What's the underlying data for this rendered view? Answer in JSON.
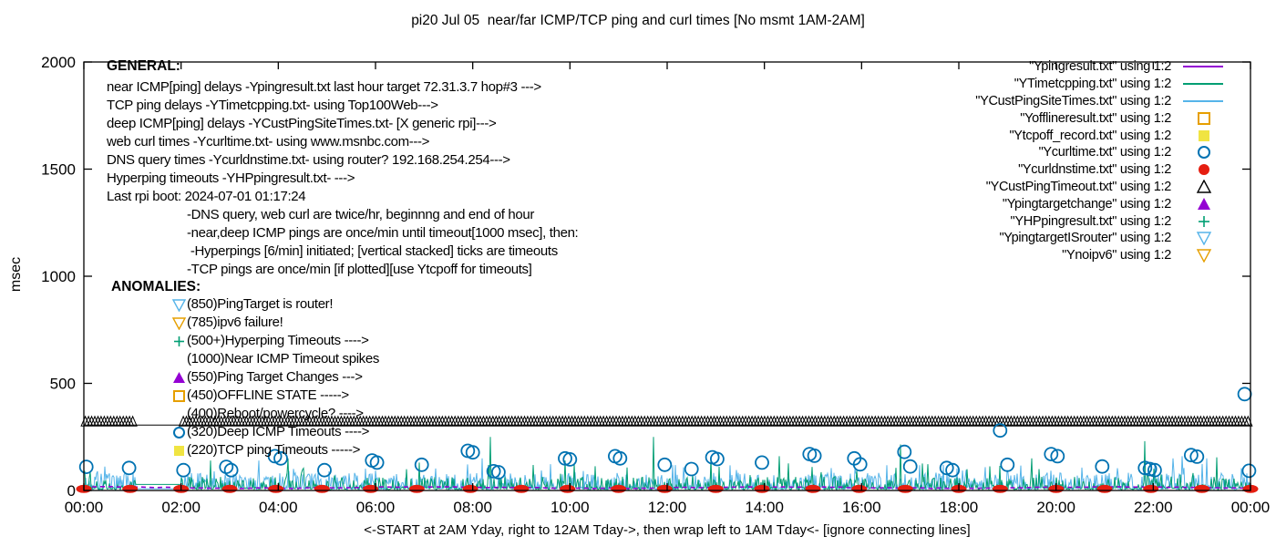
{
  "title": "pi20 Jul 05  near/far ICMP/TCP ping and curl times [No msmt 1AM-2AM]",
  "colors": {
    "purple": "#9400d3",
    "teal": "#009e73",
    "sky": "#56b4e9",
    "orange": "#e69f00",
    "yellow": "#f0e442",
    "blue": "#0072b2",
    "red": "#e51e10",
    "black": "#000000"
  },
  "axes": {
    "ylabel": "msec",
    "y_ticks": [
      0,
      500,
      1000,
      1500,
      2000
    ],
    "x_ticks": [
      "00:00",
      "02:00",
      "04:00",
      "06:00",
      "08:00",
      "10:00",
      "12:00",
      "14:00",
      "16:00",
      "18:00",
      "20:00",
      "22:00",
      "00:00"
    ],
    "x_caption": "<-START at 2AM Yday, right to 12AM Tday->, then wrap left to 1AM Tday<- [ignore connecting lines]"
  },
  "general": {
    "heading": "GENERAL:",
    "lines": [
      "near ICMP[ping] delays -Ypingresult.txt last hour target 72.31.3.7 hop#3 --->",
      "TCP ping delays -YTimetcpping.txt- using Top100Web--->",
      "deep ICMP[ping] delays -YCustPingSiteTimes.txt- [X generic rpi]--->",
      "web curl times -Ycurltime.txt- using www.msnbc.com--->",
      "DNS query times -Ycurldnstime.txt- using router? 192.168.254.254--->",
      "Hyperping timeouts -YHPpingresult.txt- --->",
      "Last rpi boot: 2024-07-01 01:17:24"
    ],
    "indented_lines": [
      "-DNS query, web curl are twice/hr, beginnng and end of hour",
      "-near,deep ICMP pings are once/min until timeout[1000 msec], then:",
      " -Hyperpings [6/min] initiated; [vertical stacked] ticks are timeouts",
      "-TCP pings are once/min [if plotted][use Ytcpoff for timeouts]"
    ]
  },
  "anomalies": {
    "heading": "ANOMALIES:",
    "items": [
      {
        "icon": "open-triangle-down",
        "color": "sky",
        "text": "(850)PingTarget is router!"
      },
      {
        "icon": "open-triangle-down",
        "color": "orange",
        "text": "(785)ipv6 failure!"
      },
      {
        "icon": "plus",
        "color": "teal",
        "text": "(500+)Hyperping Timeouts ---->"
      },
      {
        "icon": "none",
        "color": "black",
        "text": "(1000)Near ICMP Timeout spikes"
      },
      {
        "icon": "filled-triangle-up",
        "color": "purple",
        "text": "(550)Ping Target Changes --->"
      },
      {
        "icon": "open-square",
        "color": "orange",
        "text": "(450)OFFLINE STATE ----->"
      },
      {
        "icon": "none",
        "color": "black",
        "text": "(400)Reboot/powercycle? ---->"
      },
      {
        "icon": "open-circle",
        "color": "blue",
        "text": "(320)Deep ICMP Timeouts ---->"
      },
      {
        "icon": "filled-square",
        "color": "yellow",
        "text": "(220)TCP ping Timeouts ----->"
      }
    ]
  },
  "legend": {
    "items": [
      {
        "label": "\"Ypingresult.txt\" using 1:2",
        "sample": "line",
        "color": "purple"
      },
      {
        "label": "\"YTimetcpping.txt\" using 1:2",
        "sample": "line",
        "color": "teal"
      },
      {
        "label": "\"YCustPingSiteTimes.txt\" using 1:2",
        "sample": "line",
        "color": "sky"
      },
      {
        "label": "\"Yofflineresult.txt\" using 1:2",
        "sample": "open-square",
        "color": "orange"
      },
      {
        "label": "\"Ytcpoff_record.txt\" using 1:2",
        "sample": "filled-square",
        "color": "yellow"
      },
      {
        "label": "\"Ycurltime.txt\" using 1:2",
        "sample": "open-circle",
        "color": "blue"
      },
      {
        "label": "\"Ycurldnstime.txt\" using 1:2",
        "sample": "filled-circle",
        "color": "red"
      },
      {
        "label": "\"YCustPingTimeout.txt\" using 1:2",
        "sample": "open-triangle-up",
        "color": "black"
      },
      {
        "label": "\"Ypingtargetchange\" using 1:2",
        "sample": "filled-triangle-up",
        "color": "purple"
      },
      {
        "label": "\"YHPpingresult.txt\" using 1:2",
        "sample": "plus",
        "color": "teal"
      },
      {
        "label": "\"YpingtargetISrouter\" using 1:2",
        "sample": "open-triangle-down",
        "color": "sky"
      },
      {
        "label": "\"Ynoipv6\" using 1:2",
        "sample": "open-triangle-down",
        "color": "orange"
      }
    ]
  },
  "chart_data": {
    "type": "line",
    "title": "pi20 Jul 05  near/far ICMP/TCP ping and curl times [No msmt 1AM-2AM]",
    "xlabel": "<-START at 2AM Yday, right to 12AM Tday->, then wrap left to 1AM Tday<- [ignore connecting lines]",
    "ylabel": "msec",
    "ylim": [
      0,
      2000
    ],
    "x_hours_range": [
      0,
      24
    ],
    "x_tick_labels": [
      "00:00",
      "02:00",
      "04:00",
      "06:00",
      "08:00",
      "10:00",
      "12:00",
      "14:00",
      "16:00",
      "18:00",
      "20:00",
      "22:00",
      "00:00"
    ],
    "y_ticks": [
      0,
      500,
      1000,
      1500,
      2000
    ],
    "grid": false,
    "legend_position": "top-right",
    "measurement_gap_hours": [
      1.0,
      2.0
    ],
    "noise_seed": 7,
    "series": [
      {
        "name": "Ypingresult.txt",
        "style": "dashed-line",
        "color_key": "purple",
        "level_msec": 12,
        "desc": "near ICMP ping delay, ~10-15 msec flat along baseline"
      },
      {
        "name": "YTimetcpping.txt",
        "style": "noise-line",
        "color_key": "teal",
        "base_range_msec": [
          3,
          65
        ],
        "occasional_max_msec": 130,
        "gap_flat_msec": 28,
        "tall_spikes": [
          [
            2.6,
            140
          ],
          [
            4.2,
            150
          ],
          [
            6.9,
            130
          ],
          [
            8.37,
            250
          ],
          [
            9.9,
            140
          ],
          [
            11.72,
            250
          ],
          [
            12.9,
            150
          ],
          [
            14.3,
            160
          ],
          [
            16.8,
            215
          ],
          [
            19.5,
            150
          ],
          [
            21.82,
            230
          ],
          [
            23.3,
            155
          ]
        ]
      },
      {
        "name": "YCustPingSiteTimes.txt",
        "style": "noise-line",
        "color_key": "sky",
        "base_range_msec": [
          3,
          82
        ],
        "occasional_max_msec": 125,
        "gap_flat_msec": 8,
        "tall_spikes": [
          [
            3.6,
            140
          ],
          [
            8.2,
            150
          ],
          [
            22.4,
            150
          ],
          [
            22.6,
            160
          ],
          [
            23.1,
            150
          ]
        ]
      },
      {
        "name": "Ycurltime.txt",
        "style": "points",
        "marker": "open-circle",
        "color_key": "blue",
        "points": [
          [
            0.05,
            110
          ],
          [
            0.93,
            105
          ],
          [
            2.05,
            95
          ],
          [
            2.93,
            110
          ],
          [
            3.03,
            95
          ],
          [
            3.93,
            160
          ],
          [
            4.05,
            150
          ],
          [
            4.95,
            95
          ],
          [
            5.93,
            140
          ],
          [
            6.03,
            130
          ],
          [
            6.95,
            120
          ],
          [
            7.9,
            185
          ],
          [
            8.0,
            178
          ],
          [
            8.43,
            90
          ],
          [
            8.53,
            85
          ],
          [
            9.9,
            150
          ],
          [
            10.0,
            145
          ],
          [
            10.93,
            160
          ],
          [
            11.03,
            150
          ],
          [
            11.95,
            120
          ],
          [
            12.5,
            100
          ],
          [
            12.93,
            155
          ],
          [
            13.03,
            147
          ],
          [
            13.95,
            130
          ],
          [
            14.93,
            170
          ],
          [
            15.03,
            162
          ],
          [
            15.85,
            150
          ],
          [
            15.97,
            122
          ],
          [
            16.88,
            180
          ],
          [
            17.0,
            112
          ],
          [
            17.75,
            105
          ],
          [
            17.87,
            95
          ],
          [
            18.85,
            280
          ],
          [
            19.0,
            120
          ],
          [
            19.9,
            170
          ],
          [
            20.03,
            160
          ],
          [
            20.95,
            112
          ],
          [
            21.83,
            105
          ],
          [
            21.93,
            100
          ],
          [
            22.03,
            95
          ],
          [
            22.78,
            165
          ],
          [
            22.9,
            158
          ],
          [
            23.88,
            450
          ],
          [
            23.97,
            92
          ]
        ]
      },
      {
        "name": "Ycurldnstime.txt",
        "style": "points",
        "marker": "filled-ellipse",
        "color_key": "red",
        "points": [
          [
            0,
            3
          ],
          [
            0.95,
            3
          ],
          [
            2.0,
            3
          ],
          [
            3.0,
            3
          ],
          [
            3.95,
            3
          ],
          [
            4.9,
            3
          ],
          [
            5.9,
            3
          ],
          [
            6.85,
            3
          ],
          [
            7.95,
            3
          ],
          [
            9.0,
            3
          ],
          [
            9.95,
            3
          ],
          [
            11.0,
            3
          ],
          [
            11.95,
            3
          ],
          [
            13.0,
            3
          ],
          [
            13.95,
            3
          ],
          [
            15.0,
            3
          ],
          [
            15.95,
            3
          ],
          [
            16.9,
            3
          ],
          [
            18.0,
            3
          ],
          [
            18.85,
            3
          ],
          [
            20.0,
            3
          ],
          [
            21.0,
            3
          ],
          [
            21.95,
            3
          ],
          [
            23.0,
            3
          ],
          [
            24.0,
            3
          ]
        ]
      },
      {
        "name": "YCustPingTimeout.txt",
        "style": "points-row",
        "marker": "open-triangle-up",
        "color_key": "black",
        "y_msec": 320,
        "interval_hours": 0.065,
        "connect_line": true,
        "desc": "deep ICMP timeouts: dense row of open triangles at 320 msec across full day except 1AM-2AM gap"
      }
    ]
  }
}
